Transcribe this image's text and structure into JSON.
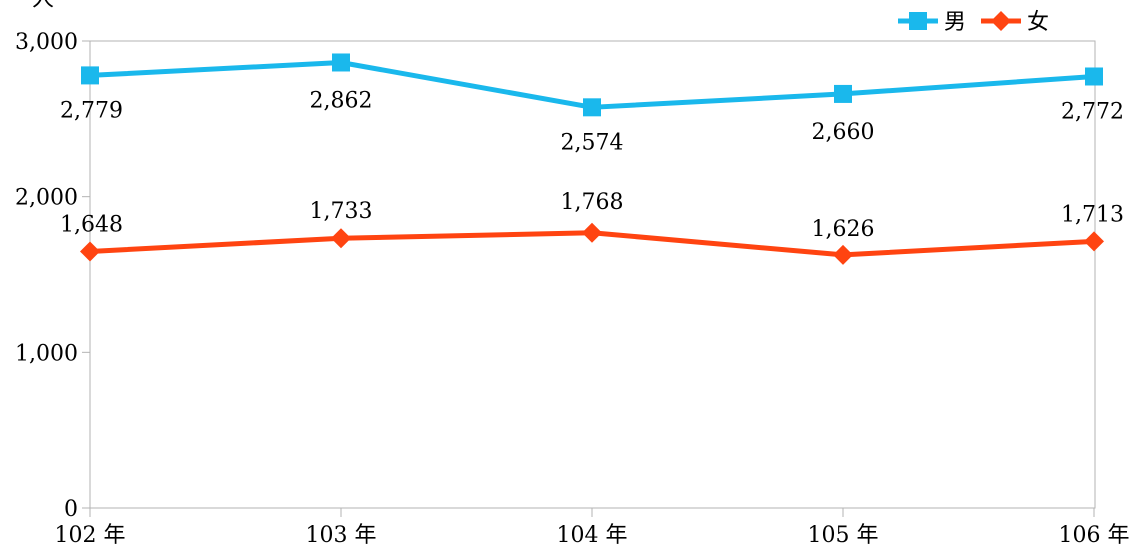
{
  "chart_data": {
    "type": "line",
    "title": "",
    "ylabel": "人",
    "categories": [
      "102 年",
      "103 年",
      "104 年",
      "105 年",
      "106 年"
    ],
    "ylim": [
      0,
      3000
    ],
    "yticks": [
      0,
      1000,
      2000,
      3000
    ],
    "ytick_labels": [
      "0",
      "1,000",
      "2,000",
      "3,000"
    ],
    "grid": false,
    "legend_position": "top-right",
    "series": [
      {
        "name": "男",
        "color": "#1ab8ec",
        "marker": "square",
        "values": [
          2779,
          2862,
          2574,
          2660,
          2772
        ],
        "labels": [
          "2,779",
          "2,862",
          "2,574",
          "2,660",
          "2,772"
        ]
      },
      {
        "name": "女",
        "color": "#ff4411",
        "marker": "diamond",
        "values": [
          1648,
          1733,
          1768,
          1626,
          1713
        ],
        "labels": [
          "1,648",
          "1,733",
          "1,768",
          "1,626",
          "1,713"
        ]
      }
    ]
  }
}
